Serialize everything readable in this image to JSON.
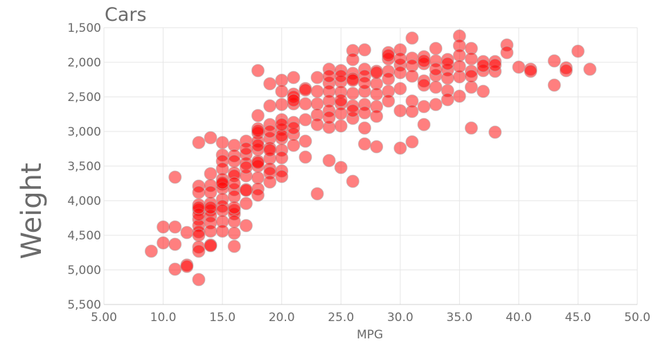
{
  "chart_data": {
    "type": "scatter",
    "title": "Cars",
    "xlabel": "MPG",
    "ylabel": "Weight",
    "xlim": [
      5,
      50
    ],
    "ylim": [
      1500,
      5500
    ],
    "y_reversed": true,
    "x_ticks": [
      "5.00",
      "10.0",
      "15.0",
      "20.0",
      "25.0",
      "30.0",
      "35.0",
      "40.0",
      "45.0",
      "50.0"
    ],
    "y_ticks": [
      "1,500",
      "2,000",
      "2,500",
      "3,000",
      "3,500",
      "4,000",
      "4,500",
      "5,000",
      "5,500"
    ],
    "grid": true,
    "legend": "none",
    "marker_color": "#ff0000",
    "marker_opacity": 0.5,
    "series": [
      {
        "points": [
          [
            9,
            4730
          ],
          [
            10,
            4380
          ],
          [
            10,
            4610
          ],
          [
            11,
            3660
          ],
          [
            11,
            4380
          ],
          [
            11,
            4630
          ],
          [
            11,
            4990
          ],
          [
            12,
            4460
          ],
          [
            12,
            4930
          ],
          [
            12,
            4950
          ],
          [
            13,
            3160
          ],
          [
            13,
            3790
          ],
          [
            13,
            3880
          ],
          [
            13,
            4060
          ],
          [
            13,
            4130
          ],
          [
            13,
            4270
          ],
          [
            13,
            4360
          ],
          [
            13,
            4450
          ],
          [
            13,
            4500
          ],
          [
            13,
            4670
          ],
          [
            13,
            4730
          ],
          [
            13,
            5140
          ],
          [
            13,
            4200
          ],
          [
            13,
            4100
          ],
          [
            14,
            3090
          ],
          [
            14,
            3610
          ],
          [
            14,
            3780
          ],
          [
            14,
            4040
          ],
          [
            14,
            4140
          ],
          [
            14,
            4220
          ],
          [
            14,
            4320
          ],
          [
            14,
            4440
          ],
          [
            14,
            4640
          ],
          [
            14,
            4650
          ],
          [
            14,
            4100
          ],
          [
            14,
            3880
          ],
          [
            15,
            3160
          ],
          [
            15,
            3340
          ],
          [
            15,
            3430
          ],
          [
            15,
            3540
          ],
          [
            15,
            3690
          ],
          [
            15,
            3760
          ],
          [
            15,
            3820
          ],
          [
            15,
            3980
          ],
          [
            15,
            4080
          ],
          [
            15,
            4140
          ],
          [
            15,
            4300
          ],
          [
            15,
            4440
          ],
          [
            15,
            3740
          ],
          [
            16,
            3200
          ],
          [
            16,
            3350
          ],
          [
            16,
            3430
          ],
          [
            16,
            3600
          ],
          [
            16,
            3640
          ],
          [
            16,
            3840
          ],
          [
            16,
            3940
          ],
          [
            16,
            4140
          ],
          [
            16,
            4190
          ],
          [
            16,
            4300
          ],
          [
            16,
            4470
          ],
          [
            16,
            4660
          ],
          [
            16,
            4100
          ],
          [
            16,
            3750
          ],
          [
            17,
            3140
          ],
          [
            17,
            3330
          ],
          [
            17,
            3460
          ],
          [
            17,
            3640
          ],
          [
            17,
            3840
          ],
          [
            17,
            4040
          ],
          [
            17,
            4360
          ],
          [
            17,
            3850
          ],
          [
            17,
            3250
          ],
          [
            17,
            3520
          ],
          [
            18,
            2120
          ],
          [
            18,
            2770
          ],
          [
            18,
            2960
          ],
          [
            18,
            3020
          ],
          [
            18,
            3140
          ],
          [
            18,
            3260
          ],
          [
            18,
            3430
          ],
          [
            18,
            3500
          ],
          [
            18,
            3670
          ],
          [
            18,
            3830
          ],
          [
            18,
            3920
          ],
          [
            18,
            3450
          ],
          [
            18,
            2990
          ],
          [
            18,
            3200
          ],
          [
            19,
            2310
          ],
          [
            19,
            2630
          ],
          [
            19,
            2900
          ],
          [
            19,
            3100
          ],
          [
            19,
            3240
          ],
          [
            19,
            3390
          ],
          [
            19,
            3540
          ],
          [
            19,
            3600
          ],
          [
            19,
            3730
          ],
          [
            19,
            3270
          ],
          [
            19,
            3000
          ],
          [
            20,
            2260
          ],
          [
            20,
            2420
          ],
          [
            20,
            2610
          ],
          [
            20,
            2830
          ],
          [
            20,
            2970
          ],
          [
            20,
            3100
          ],
          [
            20,
            3270
          ],
          [
            20,
            3380
          ],
          [
            20,
            3570
          ],
          [
            20,
            3650
          ],
          [
            20,
            3060
          ],
          [
            20,
            2900
          ],
          [
            21,
            2220
          ],
          [
            21,
            2460
          ],
          [
            21,
            2600
          ],
          [
            21,
            2870
          ],
          [
            21,
            3040
          ],
          [
            21,
            3200
          ],
          [
            21,
            2500
          ],
          [
            21,
            2550
          ],
          [
            21,
            2950
          ],
          [
            22,
            2380
          ],
          [
            22,
            2600
          ],
          [
            22,
            2830
          ],
          [
            22,
            3140
          ],
          [
            22,
            3370
          ],
          [
            22,
            2400
          ],
          [
            23,
            2220
          ],
          [
            23,
            2420
          ],
          [
            23,
            2600
          ],
          [
            23,
            2760
          ],
          [
            23,
            2900
          ],
          [
            23,
            3900
          ],
          [
            24,
            2100
          ],
          [
            24,
            2300
          ],
          [
            24,
            2420
          ],
          [
            24,
            2560
          ],
          [
            24,
            2700
          ],
          [
            24,
            2940
          ],
          [
            24,
            3420
          ],
          [
            24,
            2200
          ],
          [
            24,
            2800
          ],
          [
            25,
            2120
          ],
          [
            25,
            2280
          ],
          [
            25,
            2430
          ],
          [
            25,
            2600
          ],
          [
            25,
            2740
          ],
          [
            25,
            2920
          ],
          [
            25,
            3520
          ],
          [
            25,
            2200
          ],
          [
            25,
            2550
          ],
          [
            26,
            1830
          ],
          [
            26,
            1960
          ],
          [
            26,
            2160
          ],
          [
            26,
            2240
          ],
          [
            26,
            2450
          ],
          [
            26,
            2630
          ],
          [
            26,
            2810
          ],
          [
            26,
            3720
          ],
          [
            26,
            2260
          ],
          [
            26,
            2700
          ],
          [
            27,
            1820
          ],
          [
            27,
            2100
          ],
          [
            27,
            2200
          ],
          [
            27,
            2420
          ],
          [
            27,
            2610
          ],
          [
            27,
            2730
          ],
          [
            27,
            2950
          ],
          [
            27,
            3180
          ],
          [
            27,
            2300
          ],
          [
            28,
            2130
          ],
          [
            28,
            2310
          ],
          [
            28,
            2460
          ],
          [
            28,
            2640
          ],
          [
            28,
            2780
          ],
          [
            28,
            3220
          ],
          [
            28,
            2150
          ],
          [
            29,
            1860
          ],
          [
            29,
            1950
          ],
          [
            29,
            2130
          ],
          [
            29,
            2240
          ],
          [
            29,
            2420
          ],
          [
            29,
            2560
          ],
          [
            29,
            1900
          ],
          [
            30,
            1820
          ],
          [
            30,
            2040
          ],
          [
            30,
            2150
          ],
          [
            30,
            2380
          ],
          [
            30,
            2700
          ],
          [
            30,
            3240
          ],
          [
            30,
            1950
          ],
          [
            31,
            1650
          ],
          [
            31,
            1940
          ],
          [
            31,
            2050
          ],
          [
            31,
            2200
          ],
          [
            31,
            2560
          ],
          [
            31,
            2710
          ],
          [
            31,
            3150
          ],
          [
            32,
            1920
          ],
          [
            32,
            2020
          ],
          [
            32,
            2270
          ],
          [
            32,
            2330
          ],
          [
            32,
            2640
          ],
          [
            32,
            2900
          ],
          [
            32,
            1980
          ],
          [
            33,
            1800
          ],
          [
            33,
            1980
          ],
          [
            33,
            2190
          ],
          [
            33,
            2360
          ],
          [
            33,
            2610
          ],
          [
            33,
            2100
          ],
          [
            34,
            1960
          ],
          [
            34,
            2110
          ],
          [
            34,
            2230
          ],
          [
            34,
            2410
          ],
          [
            34,
            2540
          ],
          [
            34,
            2020
          ],
          [
            35,
            1620
          ],
          [
            35,
            1760
          ],
          [
            35,
            1900
          ],
          [
            35,
            2210
          ],
          [
            35,
            2490
          ],
          [
            35,
            2060
          ],
          [
            36,
            1800
          ],
          [
            36,
            1950
          ],
          [
            36,
            2130
          ],
          [
            36,
            2360
          ],
          [
            36,
            2950
          ],
          [
            36,
            2200
          ],
          [
            37,
            1990
          ],
          [
            37,
            2120
          ],
          [
            37,
            2420
          ],
          [
            37,
            2050
          ],
          [
            38,
            1990
          ],
          [
            38,
            2130
          ],
          [
            38,
            3010
          ],
          [
            38,
            2040
          ],
          [
            39,
            1750
          ],
          [
            39,
            1860
          ],
          [
            40,
            2070
          ],
          [
            41,
            2100
          ],
          [
            41,
            2130
          ],
          [
            43,
            1980
          ],
          [
            43,
            2330
          ],
          [
            44,
            2080
          ],
          [
            44,
            2120
          ],
          [
            45,
            1840
          ],
          [
            46,
            2100
          ]
        ]
      }
    ]
  }
}
